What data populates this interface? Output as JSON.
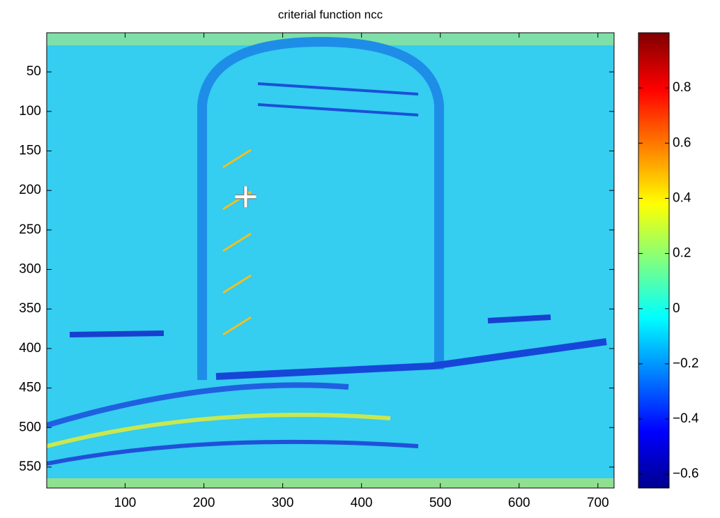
{
  "chart_data": {
    "type": "image",
    "title": "criterial function ncc",
    "xlim": [
      0.5,
      720.5
    ],
    "ylim": [
      0.5,
      576.5
    ],
    "y_reversed": true,
    "xticks": [
      100,
      200,
      300,
      400,
      500,
      600,
      700
    ],
    "yticks": [
      50,
      100,
      150,
      200,
      250,
      300,
      350,
      400,
      450,
      500,
      550
    ],
    "colormap": "jet",
    "clim": [
      -0.65,
      1.0
    ],
    "colorbar_ticks": [
      {
        "value": -0.6,
        "label": "−0.6"
      },
      {
        "value": -0.4,
        "label": "−0.4"
      },
      {
        "value": -0.2,
        "label": "−0.2"
      },
      0,
      0.2,
      0.4,
      0.6,
      0.8
    ],
    "marker": {
      "x": 253,
      "y": 208,
      "color": "#ffffff"
    }
  }
}
